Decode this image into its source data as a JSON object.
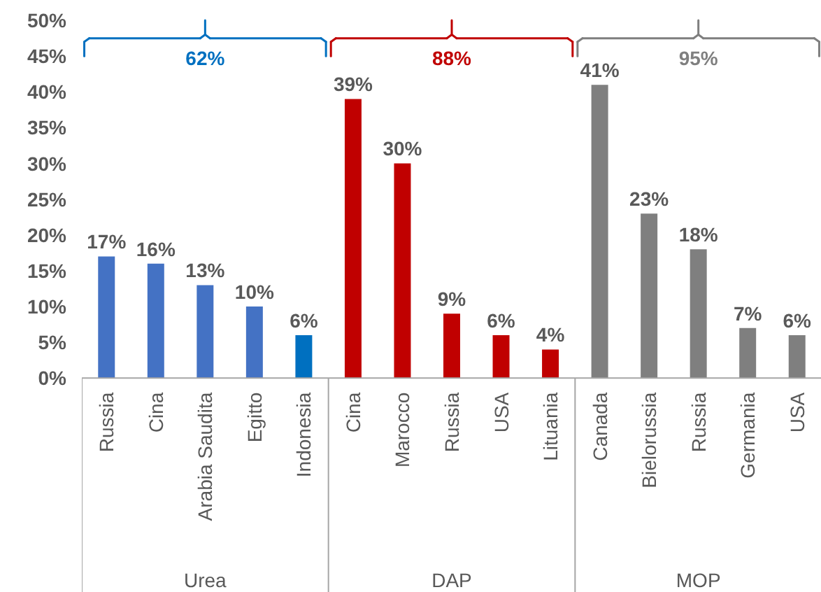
{
  "chart_data": {
    "type": "bar",
    "categories": [
      "Russia",
      "Cina",
      "Arabia Saudita",
      "Egitto",
      "Indonesia",
      "Cina",
      "Marocco",
      "Russia",
      "USA",
      "Lituania",
      "Canada",
      "Bielorussia",
      "Russia",
      "Germania",
      "USA"
    ],
    "values": [
      17,
      16,
      13,
      10,
      6,
      39,
      30,
      9,
      6,
      4,
      41,
      23,
      18,
      7,
      6
    ],
    "value_labels": [
      "17%",
      "16%",
      "13%",
      "10%",
      "6%",
      "39%",
      "30%",
      "9%",
      "6%",
      "4%",
      "41%",
      "23%",
      "18%",
      "7%",
      "6%"
    ],
    "colors": [
      "#4472c4",
      "#4472c4",
      "#4472c4",
      "#4472c4",
      "#0070c0",
      "#c00000",
      "#c00000",
      "#c00000",
      "#c00000",
      "#c00000",
      "#7f7f7f",
      "#7f7f7f",
      "#7f7f7f",
      "#7f7f7f",
      "#7f7f7f"
    ],
    "ylim": [
      0,
      50
    ],
    "yticks": [
      {
        "value": 0,
        "label": "0%"
      },
      {
        "value": 5,
        "label": "5%"
      },
      {
        "value": 10,
        "label": "10%"
      },
      {
        "value": 15,
        "label": "15%"
      },
      {
        "value": 20,
        "label": "20%"
      },
      {
        "value": 25,
        "label": "25%"
      },
      {
        "value": 30,
        "label": "30%"
      },
      {
        "value": 35,
        "label": "35%"
      },
      {
        "value": 40,
        "label": "40%"
      },
      {
        "value": 45,
        "label": "45%"
      },
      {
        "value": 50,
        "label": "50%"
      }
    ],
    "grid": false,
    "annotations": [
      "62%",
      "88%",
      "95%",
      "Urea",
      "DAP",
      "MOP"
    ]
  }
}
